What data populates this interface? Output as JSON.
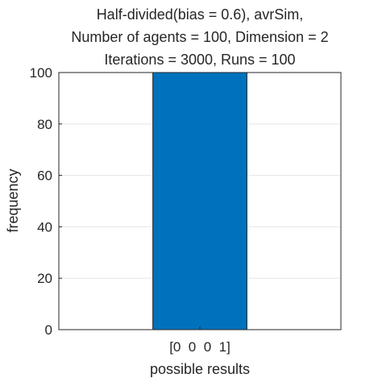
{
  "chart_data": {
    "type": "bar",
    "title": [
      "Half-divided(bias = 0.6), avrSim,",
      "Number of agents = 100, Dimension = 2",
      "Iterations = 3000, Runs = 100"
    ],
    "xlabel": "possible results",
    "ylabel": "frequency",
    "categories": [
      "[0  0  0  1]"
    ],
    "values": [
      100
    ],
    "ylim": [
      0,
      100
    ],
    "yticks": [
      0,
      20,
      40,
      60,
      80,
      100
    ],
    "grid": true,
    "bar_color": "#0072BD"
  }
}
